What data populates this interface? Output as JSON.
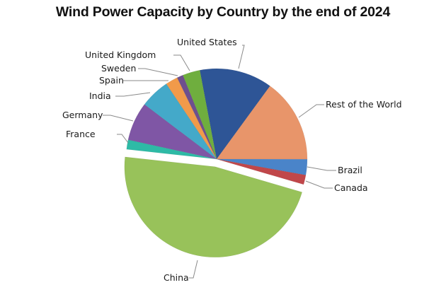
{
  "title": "Wind Power Capacity by Country by the end of 2024",
  "chart_data": {
    "type": "pie",
    "title": "Wind Power Capacity by Country by the end of 2024",
    "unit": "share of global capacity (%) — estimated from slice angles",
    "start_angle_deg": -10.7,
    "direction": "clockwise",
    "exploded": [
      "China"
    ],
    "legend": "none (leader-line labels)",
    "categories": [
      "United States",
      "Rest of the World",
      "Brazil",
      "Canada",
      "China",
      "France",
      "Germany",
      "India",
      "Spain",
      "Sweden",
      "United Kingdom"
    ],
    "values": [
      13.0,
      15.0,
      2.8,
      1.7,
      47.2,
      1.7,
      6.9,
      5.3,
      2.2,
      1.1,
      3.1
    ],
    "colors": [
      "#2e5596",
      "#e8956a",
      "#4a84c9",
      "#c0474a",
      "#98c25a",
      "#2ebaa6",
      "#7f56a5",
      "#44a9c9",
      "#f19a4a",
      "#6e4f8e",
      "#6fae3e"
    ]
  }
}
